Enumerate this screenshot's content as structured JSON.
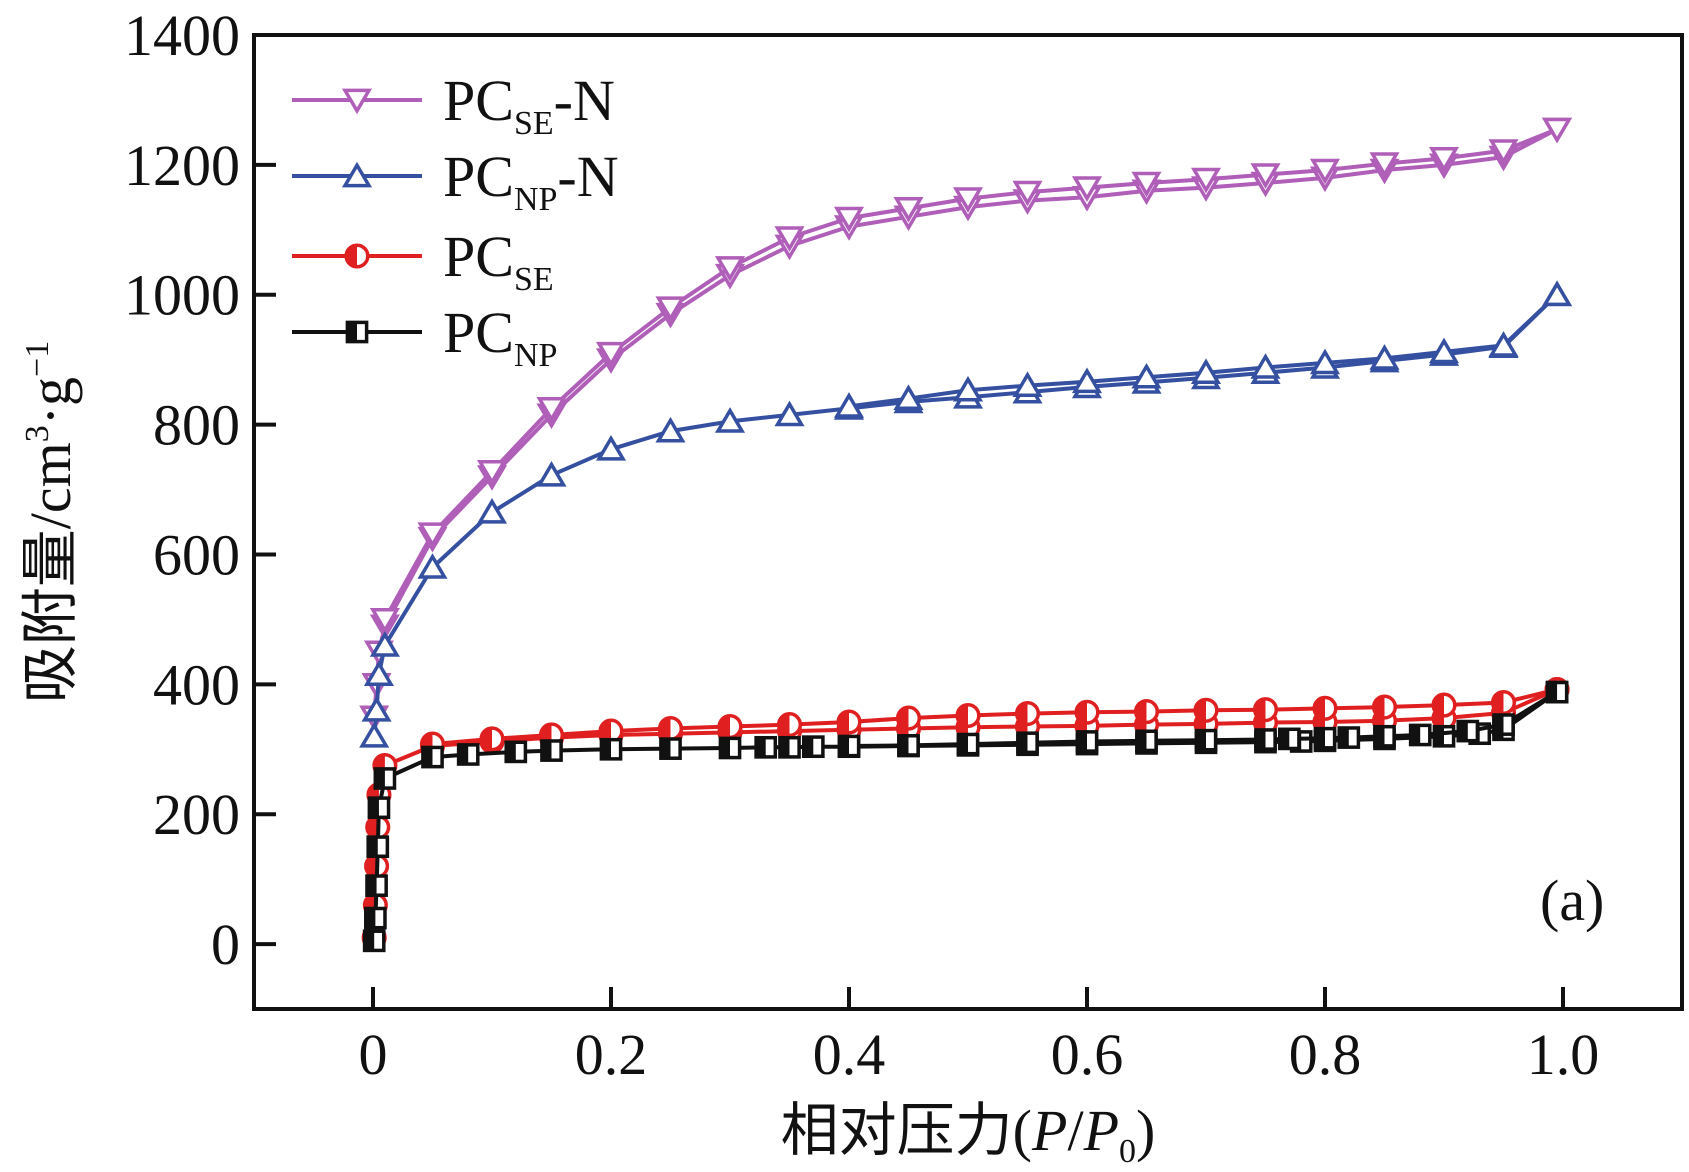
{
  "chart_data": {
    "type": "line",
    "panel_label": "(a)",
    "xlabel": {
      "prefix": "相对压力(",
      "p": "P",
      "slash": "/",
      "p0": "P",
      "p0_sub": "0",
      "suffix": ")"
    },
    "ylabel": {
      "prefix": "吸附量/cm",
      "sup3": "3",
      "mid": "·g",
      "sup_neg1": "−1"
    },
    "xlim": [
      -0.1,
      1.1
    ],
    "ylim": [
      -100,
      1400
    ],
    "x_ticks": [
      {
        "value": 0,
        "label": "0"
      },
      {
        "value": 0.2,
        "label": "0.2"
      },
      {
        "value": 0.4,
        "label": "0.4"
      },
      {
        "value": 0.6,
        "label": "0.6"
      },
      {
        "value": 0.8,
        "label": "0.8"
      },
      {
        "value": 1.0,
        "label": "1.0"
      }
    ],
    "y_ticks": [
      {
        "value": 0,
        "label": "0"
      },
      {
        "value": 200,
        "label": "200"
      },
      {
        "value": 400,
        "label": "400"
      },
      {
        "value": 600,
        "label": "600"
      },
      {
        "value": 800,
        "label": "800"
      },
      {
        "value": 1000,
        "label": "1000"
      },
      {
        "value": 1200,
        "label": "1200"
      },
      {
        "value": 1400,
        "label": "1400"
      }
    ],
    "grid": false,
    "legend_position": "top-left",
    "series": [
      {
        "name_main": "PC",
        "name_sub": "SE",
        "name_suffix": "-N",
        "color": "#b05fb8",
        "marker": "triangle-down",
        "adsorption": [
          [
            0.001,
            350
          ],
          [
            0.003,
            400
          ],
          [
            0.005,
            450
          ],
          [
            0.01,
            490
          ],
          [
            0.05,
            625
          ],
          [
            0.1,
            720
          ],
          [
            0.15,
            815
          ],
          [
            0.2,
            900
          ],
          [
            0.25,
            970
          ],
          [
            0.3,
            1030
          ],
          [
            0.35,
            1075
          ],
          [
            0.4,
            1105
          ],
          [
            0.45,
            1120
          ],
          [
            0.5,
            1135
          ],
          [
            0.55,
            1145
          ],
          [
            0.6,
            1150
          ],
          [
            0.65,
            1160
          ],
          [
            0.7,
            1165
          ],
          [
            0.75,
            1172
          ],
          [
            0.8,
            1180
          ],
          [
            0.85,
            1192
          ],
          [
            0.9,
            1200
          ],
          [
            0.95,
            1212
          ],
          [
            0.995,
            1255
          ]
        ],
        "desorption": [
          [
            0.995,
            1255
          ],
          [
            0.95,
            1222
          ],
          [
            0.9,
            1210
          ],
          [
            0.85,
            1202
          ],
          [
            0.8,
            1192
          ],
          [
            0.75,
            1185
          ],
          [
            0.7,
            1178
          ],
          [
            0.65,
            1172
          ],
          [
            0.6,
            1165
          ],
          [
            0.55,
            1158
          ],
          [
            0.5,
            1148
          ],
          [
            0.45,
            1133
          ],
          [
            0.4,
            1118
          ],
          [
            0.35,
            1088
          ],
          [
            0.3,
            1042
          ],
          [
            0.25,
            980
          ],
          [
            0.2,
            910
          ],
          [
            0.15,
            825
          ],
          [
            0.1,
            728
          ],
          [
            0.05,
            632
          ],
          [
            0.01,
            500
          ]
        ]
      },
      {
        "name_main": "PC",
        "name_sub": "NP",
        "name_suffix": "-N",
        "color": "#3550a0",
        "marker": "triangle-up",
        "adsorption": [
          [
            0.001,
            320
          ],
          [
            0.003,
            360
          ],
          [
            0.005,
            415
          ],
          [
            0.01,
            460
          ],
          [
            0.05,
            580
          ],
          [
            0.1,
            665
          ],
          [
            0.15,
            722
          ],
          [
            0.2,
            762
          ],
          [
            0.25,
            790
          ],
          [
            0.3,
            805
          ],
          [
            0.35,
            815
          ],
          [
            0.4,
            825
          ],
          [
            0.45,
            835
          ],
          [
            0.5,
            842
          ],
          [
            0.55,
            850
          ],
          [
            0.6,
            858
          ],
          [
            0.65,
            865
          ],
          [
            0.7,
            872
          ],
          [
            0.75,
            880
          ],
          [
            0.8,
            888
          ],
          [
            0.85,
            898
          ],
          [
            0.9,
            908
          ],
          [
            0.95,
            920
          ],
          [
            0.995,
            1000
          ]
        ],
        "desorption": [
          [
            0.995,
            1000
          ],
          [
            0.95,
            922
          ],
          [
            0.9,
            912
          ],
          [
            0.85,
            902
          ],
          [
            0.8,
            895
          ],
          [
            0.75,
            888
          ],
          [
            0.7,
            880
          ],
          [
            0.65,
            873
          ],
          [
            0.6,
            866
          ],
          [
            0.55,
            860
          ],
          [
            0.5,
            853
          ],
          [
            0.45,
            840
          ],
          [
            0.4,
            828
          ]
        ]
      },
      {
        "name_main": "PC",
        "name_sub": "SE",
        "name_suffix": "",
        "color": "#e02020",
        "marker": "circle-half",
        "adsorption": [
          [
            0.001,
            10
          ],
          [
            0.002,
            60
          ],
          [
            0.003,
            120
          ],
          [
            0.004,
            180
          ],
          [
            0.005,
            230
          ],
          [
            0.01,
            275
          ],
          [
            0.05,
            305
          ],
          [
            0.1,
            312
          ],
          [
            0.15,
            318
          ],
          [
            0.2,
            322
          ],
          [
            0.25,
            324
          ],
          [
            0.3,
            326
          ],
          [
            0.35,
            328
          ],
          [
            0.4,
            330
          ],
          [
            0.45,
            332
          ],
          [
            0.5,
            334
          ],
          [
            0.55,
            335
          ],
          [
            0.6,
            336
          ],
          [
            0.65,
            338
          ],
          [
            0.7,
            339
          ],
          [
            0.75,
            341
          ],
          [
            0.8,
            342
          ],
          [
            0.85,
            344
          ],
          [
            0.9,
            348
          ],
          [
            0.95,
            356
          ],
          [
            0.995,
            392
          ]
        ],
        "desorption": [
          [
            0.995,
            392
          ],
          [
            0.95,
            372
          ],
          [
            0.9,
            368
          ],
          [
            0.85,
            365
          ],
          [
            0.8,
            363
          ],
          [
            0.75,
            361
          ],
          [
            0.7,
            360
          ],
          [
            0.65,
            358
          ],
          [
            0.6,
            357
          ],
          [
            0.55,
            355
          ],
          [
            0.5,
            352
          ],
          [
            0.45,
            348
          ],
          [
            0.4,
            342
          ],
          [
            0.35,
            338
          ],
          [
            0.3,
            335
          ],
          [
            0.25,
            332
          ],
          [
            0.2,
            328
          ],
          [
            0.15,
            322
          ],
          [
            0.1,
            316
          ],
          [
            0.05,
            308
          ]
        ]
      },
      {
        "name_main": "PC",
        "name_sub": "NP",
        "name_suffix": "",
        "color": "#111111",
        "marker": "square-half",
        "adsorption": [
          [
            0.001,
            5
          ],
          [
            0.002,
            40
          ],
          [
            0.003,
            90
          ],
          [
            0.004,
            150
          ],
          [
            0.005,
            210
          ],
          [
            0.01,
            255
          ],
          [
            0.05,
            288
          ],
          [
            0.08,
            292
          ],
          [
            0.12,
            296
          ],
          [
            0.15,
            298
          ],
          [
            0.2,
            300
          ],
          [
            0.25,
            301
          ],
          [
            0.3,
            302
          ],
          [
            0.33,
            303
          ],
          [
            0.35,
            303
          ],
          [
            0.37,
            304
          ],
          [
            0.4,
            304
          ],
          [
            0.45,
            305
          ],
          [
            0.5,
            306
          ],
          [
            0.55,
            307
          ],
          [
            0.6,
            308
          ],
          [
            0.65,
            309
          ],
          [
            0.7,
            310
          ],
          [
            0.75,
            311
          ],
          [
            0.78,
            312
          ],
          [
            0.8,
            313
          ],
          [
            0.85,
            316
          ],
          [
            0.9,
            320
          ],
          [
            0.93,
            324
          ],
          [
            0.95,
            330
          ],
          [
            0.995,
            388
          ]
        ],
        "desorption": [
          [
            0.995,
            388
          ],
          [
            0.95,
            338
          ],
          [
            0.92,
            328
          ],
          [
            0.88,
            322
          ],
          [
            0.85,
            320
          ],
          [
            0.82,
            318
          ],
          [
            0.8,
            317
          ],
          [
            0.77,
            316
          ],
          [
            0.75,
            315
          ],
          [
            0.7,
            314
          ],
          [
            0.65,
            313
          ],
          [
            0.6,
            312
          ],
          [
            0.55,
            310
          ],
          [
            0.5,
            308
          ],
          [
            0.45,
            306
          ],
          [
            0.4,
            305
          ]
        ]
      }
    ]
  }
}
